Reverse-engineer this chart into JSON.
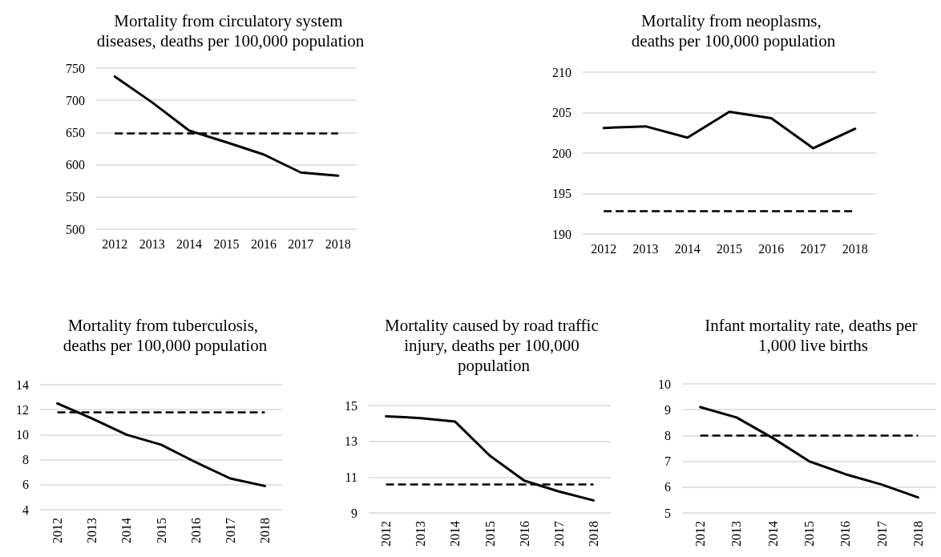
{
  "chart_data": [
    {
      "type": "line",
      "title": "Mortality from circulatory system diseases, deaths per 100,000 population",
      "categories": [
        "2012",
        "2013",
        "2014",
        "2015",
        "2016",
        "2017",
        "2018"
      ],
      "series": [
        {
          "color": "#000000",
          "values": [
            737,
            697,
            653,
            635,
            616,
            588,
            583
          ]
        }
      ],
      "ylim": [
        500,
        750
      ],
      "yticks": [
        500,
        550,
        600,
        650,
        700,
        750
      ],
      "grid": "y",
      "marker": "none",
      "line_style": "solid",
      "ref_lines": [
        {
          "axis": "y",
          "value": 649,
          "color": "#000000",
          "line_style": "dashed"
        }
      ]
    },
    {
      "type": "line",
      "title": "Mortality from neoplasms, deaths per 100,000 population",
      "categories": [
        "2012",
        "2013",
        "2014",
        "2015",
        "2016",
        "2017",
        "2018"
      ],
      "series": [
        {
          "color": "#000000",
          "values": [
            203.1,
            203.3,
            201.9,
            205.1,
            204.3,
            200.6,
            203.0
          ]
        }
      ],
      "ylim": [
        190,
        210
      ],
      "yticks": [
        190,
        195,
        200,
        205,
        210
      ],
      "grid": "y",
      "marker": "none",
      "line_style": "solid",
      "ref_lines": [
        {
          "axis": "y",
          "value": 192.8,
          "color": "#000000",
          "line_style": "dashed"
        }
      ]
    },
    {
      "type": "line",
      "title": "Mortality from tuberculosis, deaths per 100,000 population",
      "categories": [
        "2012",
        "2013",
        "2014",
        "2015",
        "2016",
        "2017",
        "2018"
      ],
      "series": [
        {
          "color": "#000000",
          "values": [
            12.5,
            11.3,
            10.0,
            9.2,
            7.8,
            6.5,
            5.9
          ]
        }
      ],
      "ylim": [
        4,
        14
      ],
      "yticks": [
        4,
        6,
        8,
        10,
        12,
        14
      ],
      "grid": "y",
      "marker": "none",
      "line_style": "solid",
      "ref_lines": [
        {
          "axis": "y",
          "value": 11.8,
          "color": "#000000",
          "line_style": "dashed"
        }
      ]
    },
    {
      "type": "line",
      "title": "Mortality caused by road traffic injury, deaths per 100,000 population",
      "categories": [
        "2012",
        "2013",
        "2014",
        "2015",
        "2016",
        "2017",
        "2018"
      ],
      "series": [
        {
          "color": "#000000",
          "values": [
            14.4,
            14.3,
            14.1,
            12.2,
            10.8,
            10.2,
            9.7
          ]
        }
      ],
      "ylim": [
        9,
        15
      ],
      "yticks": [
        9,
        11,
        13,
        15
      ],
      "grid": "y",
      "marker": "none",
      "line_style": "solid",
      "ref_lines": [
        {
          "axis": "y",
          "value": 10.6,
          "color": "#000000",
          "line_style": "dashed"
        }
      ]
    },
    {
      "type": "line",
      "title": "Infant mortality rate, deaths per 1,000 live births",
      "categories": [
        "2012",
        "2013",
        "2014",
        "2015",
        "2016",
        "2017",
        "2018"
      ],
      "series": [
        {
          "color": "#000000",
          "values": [
            9.1,
            8.7,
            7.9,
            7.0,
            6.5,
            6.1,
            5.6
          ]
        }
      ],
      "ylim": [
        5,
        10
      ],
      "yticks": [
        5,
        6,
        7,
        8,
        9,
        10
      ],
      "grid": "y",
      "marker": "none",
      "line_style": "solid",
      "ref_lines": [
        {
          "axis": "y",
          "value": 8.0,
          "color": "#000000",
          "line_style": "dashed"
        }
      ]
    }
  ]
}
